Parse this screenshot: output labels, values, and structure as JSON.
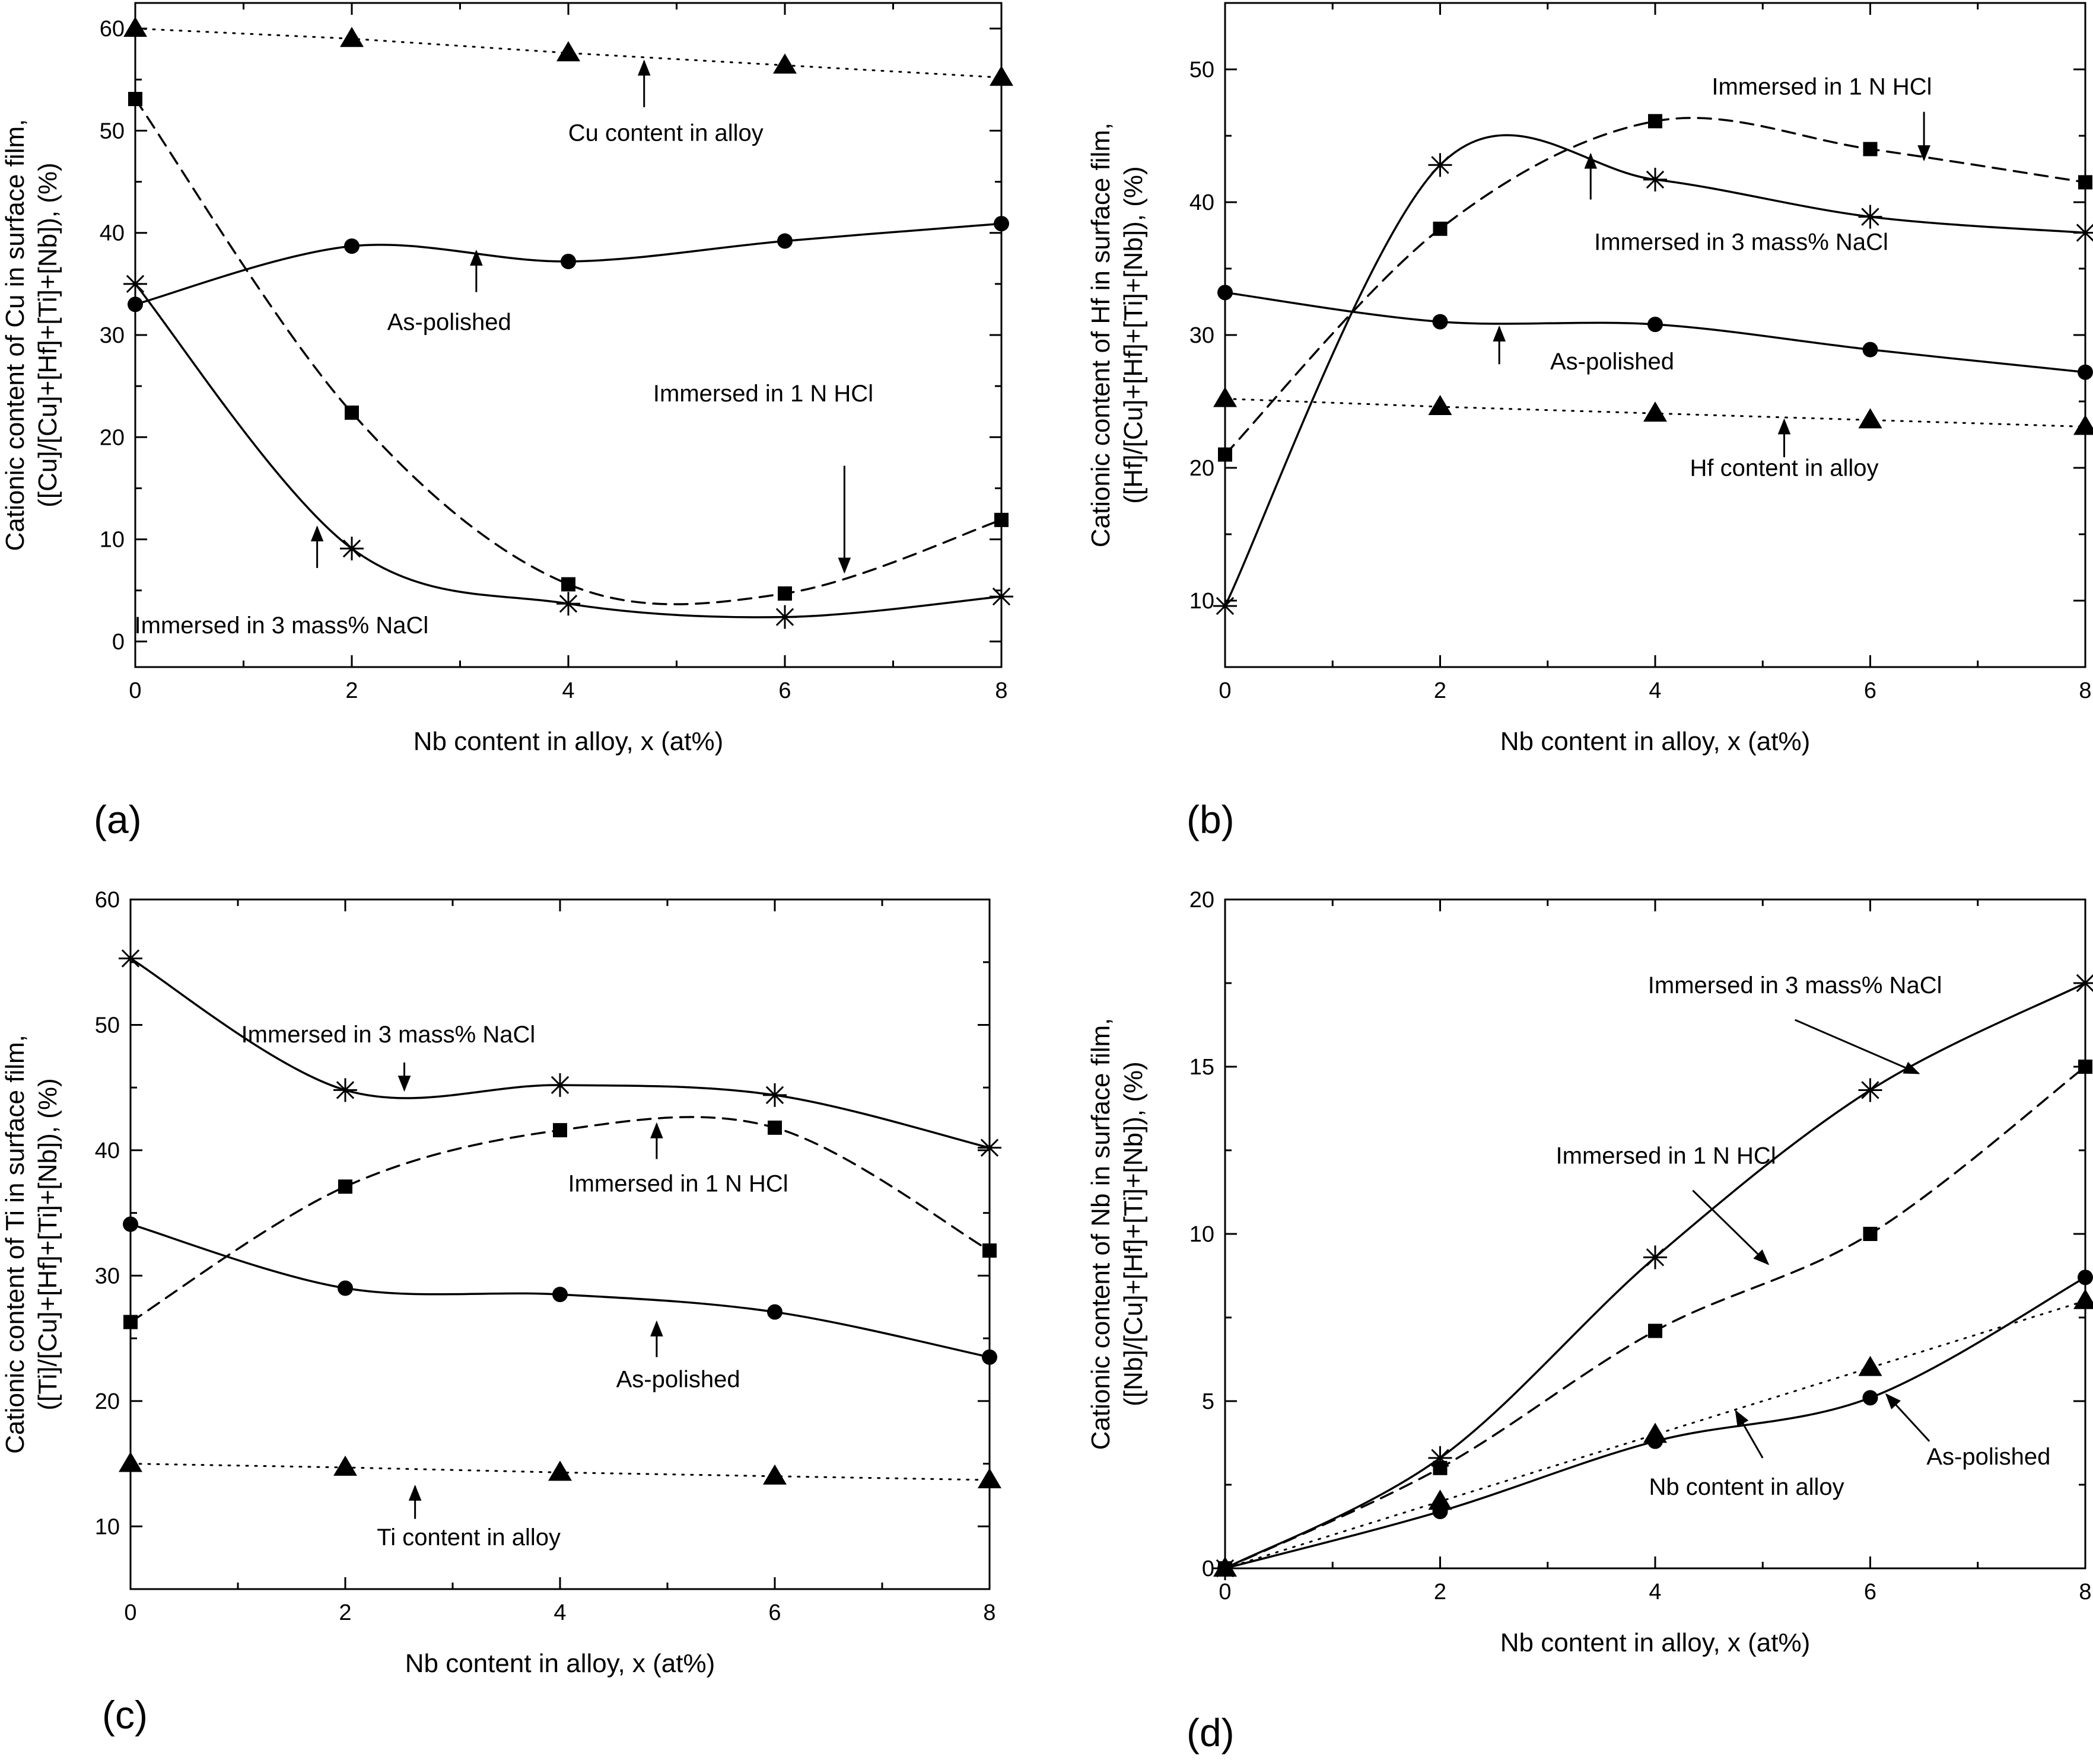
{
  "chart_data": [
    {
      "type": "line",
      "panel_label": "(a)",
      "xlabel": "Nb content in alloy, x (at%)",
      "ylabel": [
        "Cationic content of Cu in surface film,",
        "([Cu]/[Cu]+[Hf]+[Ti]+[Nb]), (%)"
      ],
      "xlim": [
        0,
        8
      ],
      "ylim": [
        -2.5,
        62.5
      ],
      "xticks": [
        0,
        2,
        4,
        6,
        8
      ],
      "yticks": [
        0,
        10,
        20,
        30,
        40,
        50,
        60
      ],
      "grid": false,
      "x": [
        0,
        2,
        4,
        6,
        8
      ],
      "series": [
        {
          "name": "Cu content in alloy",
          "marker": "triangle",
          "line": "dotted",
          "values": [
            60,
            59,
            57.6,
            56.4,
            55.2
          ]
        },
        {
          "name": "As-polished",
          "marker": "circle",
          "line": "solid",
          "values": [
            33,
            38.7,
            37.2,
            39.2,
            40.9
          ]
        },
        {
          "name": "Immersed in 1 N HCl",
          "marker": "square",
          "line": "dashed",
          "values": [
            53.1,
            22.4,
            5.6,
            4.7,
            11.9
          ]
        },
        {
          "name": "Immersed in 3 mass% NaCl",
          "marker": "asterisk",
          "line": "solid",
          "values": [
            35,
            9.1,
            3.7,
            2.4,
            4.4
          ]
        }
      ],
      "annotations": [
        {
          "text": "Cu content in alloy",
          "x": 4.9,
          "y": 49,
          "anchor": "middle"
        },
        {
          "text": "As-polished",
          "x": 2.9,
          "y": 30.5,
          "anchor": "middle"
        },
        {
          "text": "Immersed in 1 N HCl",
          "x": 5.8,
          "y": 23.5,
          "anchor": "middle"
        },
        {
          "text": "Immersed in 3 mass% NaCl",
          "x": 1.35,
          "y": 0.8,
          "anchor": "middle"
        }
      ],
      "arrows": [
        {
          "x1": 4.7,
          "y1": 52.3,
          "x2": 4.7,
          "y2": 56.8
        },
        {
          "x1": 3.15,
          "y1": 34.2,
          "x2": 3.15,
          "y2": 38.2
        },
        {
          "x1": 6.55,
          "y1": 17.2,
          "x2": 6.55,
          "y2": 6.8
        },
        {
          "x1": 1.68,
          "y1": 7.2,
          "x2": 1.68,
          "y2": 11.2
        }
      ]
    },
    {
      "type": "line",
      "panel_label": "(b)",
      "xlabel": "Nb content in alloy, x (at%)",
      "ylabel": [
        "Cationic content of Hf in surface film,",
        "([Hf]/[Cu]+[Hf]+[Ti]+[Nb]), (%)"
      ],
      "xlim": [
        0,
        8
      ],
      "ylim": [
        5,
        55
      ],
      "xticks": [
        0,
        2,
        4,
        6,
        8
      ],
      "yticks": [
        10,
        20,
        30,
        40,
        50
      ],
      "grid": false,
      "x": [
        0,
        2,
        4,
        6,
        8
      ],
      "series": [
        {
          "name": "Hf content in alloy",
          "marker": "triangle",
          "line": "dotted",
          "values": [
            25.2,
            24.6,
            24.1,
            23.6,
            23.1
          ]
        },
        {
          "name": "As-polished",
          "marker": "circle",
          "line": "solid",
          "values": [
            33.2,
            31,
            30.8,
            28.9,
            27.2
          ]
        },
        {
          "name": "Immersed in 1 N HCl",
          "marker": "square",
          "line": "dashed",
          "values": [
            21,
            38,
            46.1,
            44,
            41.5
          ]
        },
        {
          "name": "Immersed in 3 mass% NaCl",
          "marker": "asterisk",
          "line": "solid",
          "values": [
            9.6,
            42.8,
            41.7,
            38.9,
            37.7
          ]
        }
      ],
      "annotations": [
        {
          "text": "Immersed in 1 N HCl",
          "x": 5.55,
          "y": 48.1,
          "anchor": "middle"
        },
        {
          "text": "Immersed in 3 mass% NaCl",
          "x": 4.8,
          "y": 36.4,
          "anchor": "middle"
        },
        {
          "text": "As-polished",
          "x": 3.6,
          "y": 27.4,
          "anchor": "middle"
        },
        {
          "text": "Hf content in alloy",
          "x": 5.2,
          "y": 19.4,
          "anchor": "middle"
        }
      ],
      "arrows": [
        {
          "x1": 6.5,
          "y1": 46.8,
          "x2": 6.5,
          "y2": 43.2
        },
        {
          "x1": 3.4,
          "y1": 40.2,
          "x2": 3.4,
          "y2": 43.6
        },
        {
          "x1": 2.55,
          "y1": 27.8,
          "x2": 2.55,
          "y2": 30.6
        },
        {
          "x1": 5.2,
          "y1": 20.8,
          "x2": 5.2,
          "y2": 23.6
        }
      ]
    },
    {
      "type": "line",
      "panel_label": "(c)",
      "xlabel": "Nb content in alloy, x (at%)",
      "ylabel": [
        "Cationic content of Ti in surface film,",
        "([Ti]/[Cu]+[Hf]+[Ti]+[Nb]), (%)"
      ],
      "xlim": [
        0,
        8
      ],
      "ylim": [
        5,
        60
      ],
      "xticks": [
        0,
        2,
        4,
        6,
        8
      ],
      "yticks": [
        10,
        20,
        30,
        40,
        50,
        60
      ],
      "grid": false,
      "x": [
        0,
        2,
        4,
        6,
        8
      ],
      "series": [
        {
          "name": "Ti content in alloy",
          "marker": "triangle",
          "line": "dotted",
          "values": [
            15,
            14.7,
            14.3,
            14,
            13.7
          ]
        },
        {
          "name": "As-polished",
          "marker": "circle",
          "line": "solid",
          "values": [
            34.1,
            29,
            28.5,
            27.1,
            23.5
          ]
        },
        {
          "name": "Immersed in 1 N HCl",
          "marker": "square",
          "line": "dashed",
          "values": [
            26.3,
            37.1,
            41.6,
            41.8,
            32
          ]
        },
        {
          "name": "Immersed in 3 mass% NaCl",
          "marker": "asterisk",
          "line": "solid",
          "values": [
            55.3,
            44.8,
            45.2,
            44.4,
            40.2
          ]
        }
      ],
      "annotations": [
        {
          "text": "Immersed in 3 mass% NaCl",
          "x": 2.4,
          "y": 48.6,
          "anchor": "middle"
        },
        {
          "text": "Immersed in 1 N HCl",
          "x": 5.1,
          "y": 36.7,
          "anchor": "middle"
        },
        {
          "text": "As-polished",
          "x": 5.1,
          "y": 21.1,
          "anchor": "middle"
        },
        {
          "text": "Ti content in alloy",
          "x": 3.15,
          "y": 8.5,
          "anchor": "middle"
        }
      ],
      "arrows": [
        {
          "x1": 2.55,
          "y1": 47,
          "x2": 2.55,
          "y2": 44.8
        },
        {
          "x1": 4.9,
          "y1": 39.3,
          "x2": 4.9,
          "y2": 42.1
        },
        {
          "x1": 4.9,
          "y1": 23.5,
          "x2": 4.9,
          "y2": 26.3
        },
        {
          "x1": 2.65,
          "y1": 10.6,
          "x2": 2.65,
          "y2": 13.2
        }
      ]
    },
    {
      "type": "line",
      "panel_label": "(d)",
      "xlabel": "Nb content in alloy, x (at%)",
      "ylabel": [
        "Cationic content of Nb in surface film,",
        "([Nb]/[Cu]+[Hf]+[Ti]+[Nb]), (%)"
      ],
      "xlim": [
        0,
        8
      ],
      "ylim": [
        0,
        20
      ],
      "xticks": [
        0,
        2,
        4,
        6,
        8
      ],
      "yticks": [
        0,
        5,
        10,
        15,
        20
      ],
      "grid": false,
      "x": [
        0,
        2,
        4,
        6,
        8
      ],
      "series": [
        {
          "name": "Nb content in alloy",
          "marker": "triangle",
          "line": "dotted",
          "values": [
            0,
            2,
            4,
            6,
            8
          ]
        },
        {
          "name": "As-polished",
          "marker": "circle",
          "line": "solid",
          "values": [
            0,
            1.7,
            3.8,
            5.1,
            8.7
          ]
        },
        {
          "name": "Immersed in 1 N HCl",
          "marker": "square",
          "line": "dashed",
          "values": [
            0,
            3,
            7.1,
            10,
            15
          ]
        },
        {
          "name": "Immersed in 3 mass% NaCl",
          "marker": "asterisk",
          "line": "solid",
          "values": [
            0,
            3.3,
            9.3,
            14.3,
            17.5
          ]
        }
      ],
      "annotations": [
        {
          "text": "Immersed in 3 mass% NaCl",
          "x": 5.3,
          "y": 17.2,
          "anchor": "middle"
        },
        {
          "text": "Immersed in 1 N HCl",
          "x": 4.1,
          "y": 12.1,
          "anchor": "middle"
        },
        {
          "text": "As-polished",
          "x": 7.1,
          "y": 3.1,
          "anchor": "middle"
        },
        {
          "text": "Nb content in alloy",
          "x": 4.85,
          "y": 2.2,
          "anchor": "middle"
        }
      ],
      "arrows": [
        {
          "x1": 5.3,
          "y1": 16.4,
          "x2": 6.45,
          "y2": 14.8
        },
        {
          "x1": 4.35,
          "y1": 11.3,
          "x2": 5.05,
          "y2": 9.1
        },
        {
          "x1": 6.55,
          "y1": 3.8,
          "x2": 6.15,
          "y2": 5.2
        },
        {
          "x1": 5,
          "y1": 3.3,
          "x2": 4.75,
          "y2": 4.7
        }
      ]
    }
  ]
}
